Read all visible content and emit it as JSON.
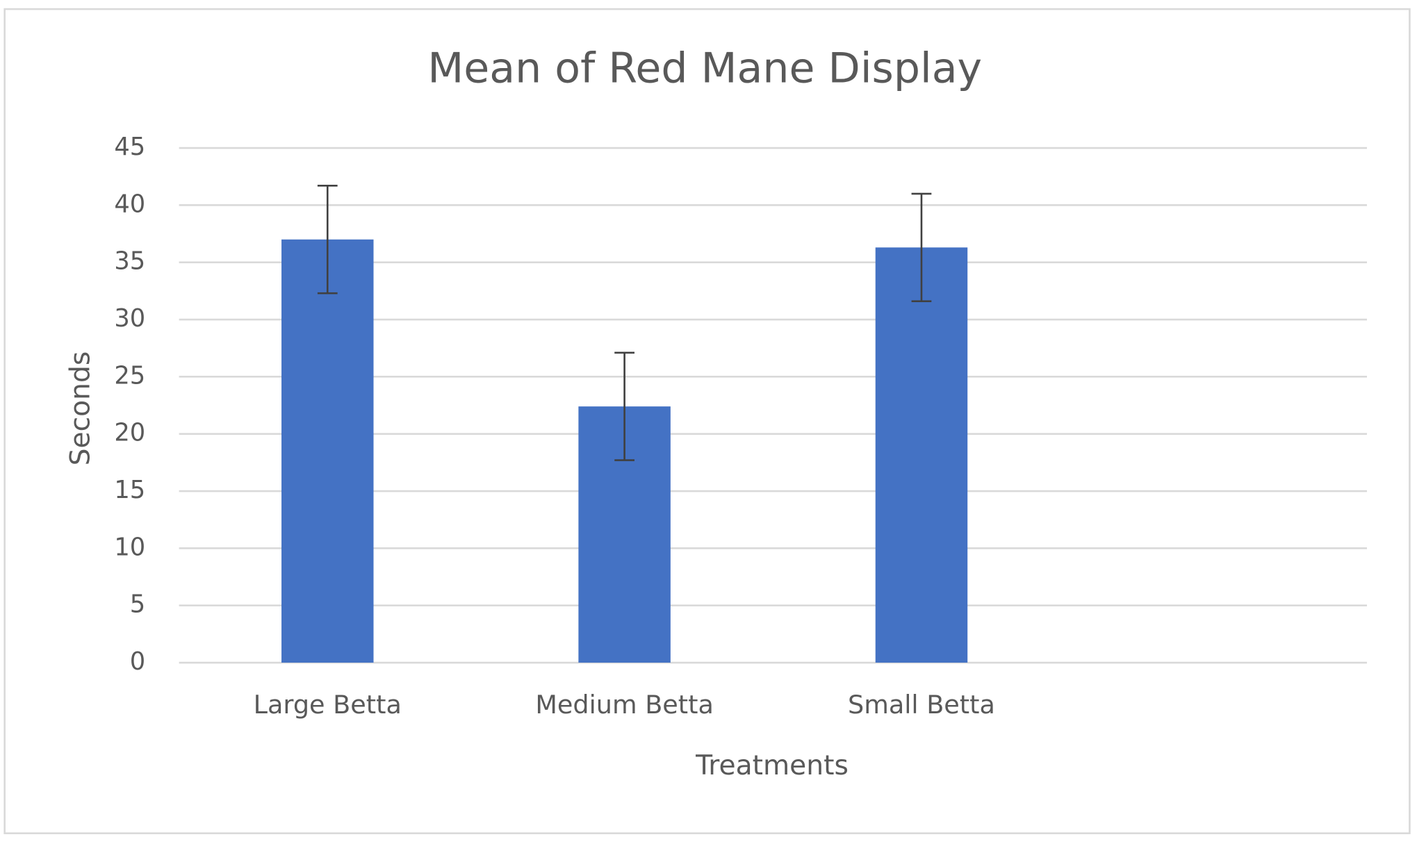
{
  "chart_data": {
    "type": "bar",
    "title": "Mean of Red Mane Display",
    "x_label": "Treatments",
    "y_label": "Seconds",
    "categories": [
      "Large Betta",
      "Medium Betta",
      "Small Betta",
      null
    ],
    "values": [
      37,
      22.4,
      36.3,
      null
    ],
    "errors": [
      4.7,
      4.7,
      4.7,
      null
    ],
    "color": "#4472c4",
    "error_color": "#404040",
    "ylim": [
      0,
      45
    ],
    "yticks": [
      0,
      5,
      10,
      15,
      20,
      25,
      30,
      35,
      40,
      45
    ],
    "grid": true
  }
}
